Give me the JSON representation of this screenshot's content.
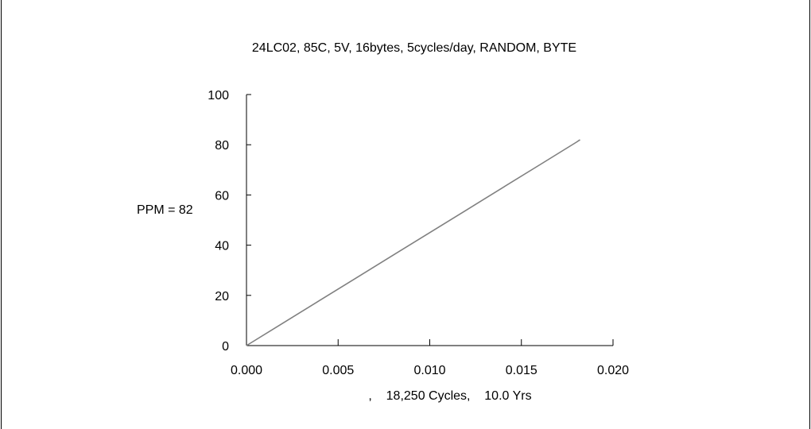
{
  "chart_data": {
    "type": "line",
    "title": "24LC02, 85C, 5V, 16bytes, 5cycles/day, RANDOM, BYTE",
    "xlabel": ",    18,250 Cycles,    10.0 Yrs",
    "ylabel": "",
    "annotation": "PPM = 82",
    "xlim": [
      0,
      0.02
    ],
    "ylim": [
      0,
      100
    ],
    "x_ticks": [
      "0.000",
      "0.005",
      "0.010",
      "0.015",
      "0.020"
    ],
    "y_ticks": [
      "0",
      "20",
      "40",
      "60",
      "80",
      "100"
    ],
    "grid": false,
    "legend": "none",
    "line_color": "#808080",
    "series": [
      {
        "x": [
          0.0,
          0.002,
          0.004,
          0.006,
          0.008,
          0.01,
          0.012,
          0.014,
          0.016,
          0.018,
          0.0182
        ],
        "values": [
          0,
          9,
          18,
          27,
          36,
          45,
          54,
          63,
          72,
          81,
          82
        ]
      }
    ]
  }
}
